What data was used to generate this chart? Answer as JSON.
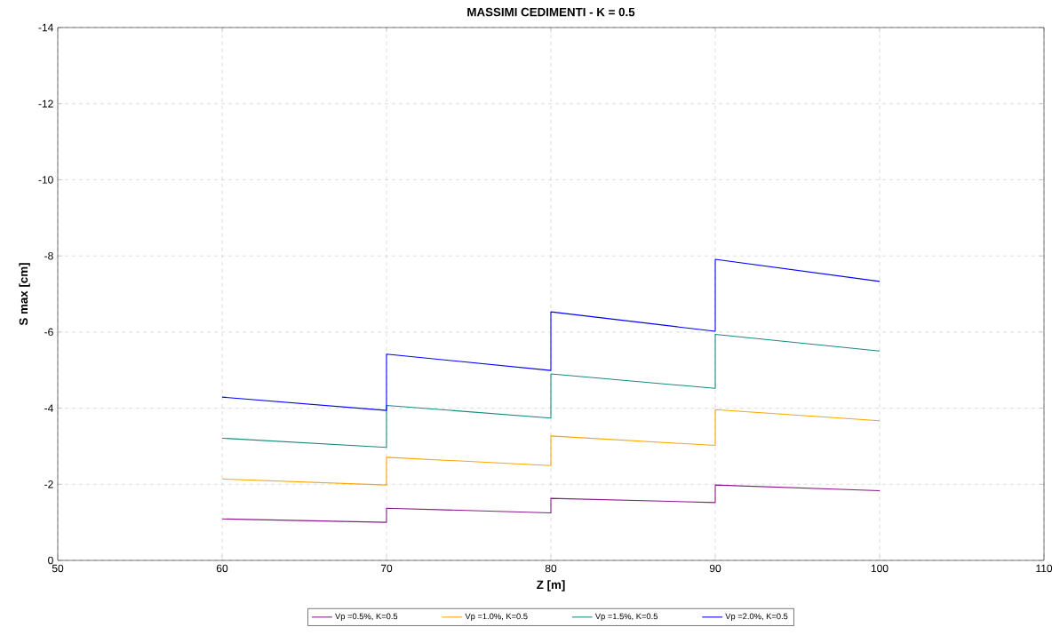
{
  "chart_data": {
    "type": "line",
    "title": "MASSIMI CEDIMENTI - K = 0.5",
    "xlabel": "Z [m]",
    "ylabel": "S max [cm]",
    "xlim": [
      50,
      110
    ],
    "xticks": [
      50,
      60,
      70,
      80,
      90,
      100,
      110
    ],
    "ylim": [
      0,
      -14
    ],
    "yticks": [
      0,
      -2,
      -4,
      -6,
      -8,
      -10,
      -12,
      -14
    ],
    "grid": true,
    "legend": "bottom",
    "marker": "none",
    "line_style": "solid",
    "series": [
      {
        "name": "Vp =0.5%, K=0.5",
        "color": "#8b1a8b",
        "x": [
          60,
          70,
          70,
          80,
          80,
          90,
          90,
          100
        ],
        "values": [
          -1.09,
          -1.0,
          -1.37,
          -1.25,
          -1.63,
          -1.52,
          -1.98,
          -1.83
        ]
      },
      {
        "name": "Vp =1.0%, K=0.5",
        "color": "#ffa500",
        "x": [
          60,
          70,
          70,
          80,
          80,
          90,
          90,
          100
        ],
        "values": [
          -2.14,
          -1.98,
          -2.71,
          -2.49,
          -3.27,
          -3.02,
          -3.96,
          -3.67
        ]
      },
      {
        "name": "Vp =1.5%, K=0.5",
        "color": "#168b80",
        "x": [
          60,
          70,
          70,
          80,
          80,
          90,
          90,
          100
        ],
        "values": [
          -3.21,
          -2.97,
          -4.07,
          -3.74,
          -4.9,
          -4.52,
          -5.94,
          -5.5
        ]
      },
      {
        "name": "Vp =2.0%, K=0.5",
        "color": "#0000ff",
        "x": [
          60,
          70,
          70,
          80,
          80,
          90,
          90,
          100
        ],
        "values": [
          -4.29,
          -3.94,
          -5.42,
          -4.99,
          -6.53,
          -6.02,
          -7.91,
          -7.33
        ]
      }
    ]
  }
}
